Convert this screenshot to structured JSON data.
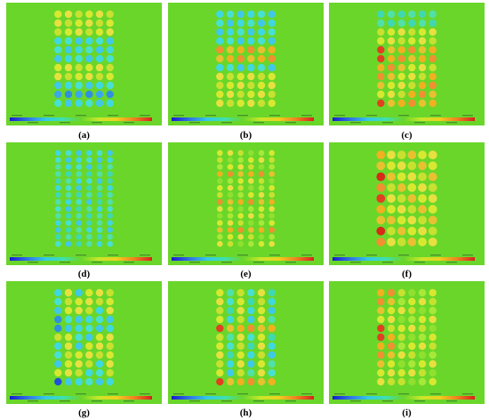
{
  "panels": [
    {
      "label": "(a)",
      "cols": 6,
      "rows": 11,
      "pattern": "a"
    },
    {
      "label": "(b)",
      "cols": 6,
      "rows": 11,
      "pattern": "b"
    },
    {
      "label": "(c)",
      "cols": 6,
      "rows": 11,
      "pattern": "c"
    },
    {
      "label": "(d)",
      "cols": 6,
      "rows": 14,
      "pattern": "d"
    },
    {
      "label": "(e)",
      "cols": 6,
      "rows": 14,
      "pattern": "e"
    },
    {
      "label": "(f)",
      "cols": 6,
      "rows": 9,
      "pattern": "f"
    },
    {
      "label": "(g)",
      "cols": 6,
      "rows": 11,
      "pattern": "g"
    },
    {
      "label": "(h)",
      "cols": 6,
      "rows": 11,
      "pattern": "h"
    },
    {
      "label": "(i)",
      "cols": 6,
      "rows": 11,
      "pattern": "i"
    }
  ],
  "colors": {
    "background": "#6ad62a",
    "colorbar": [
      "#1a1ad0",
      "#2f73e6",
      "#35c8e8",
      "#3de0b0",
      "#6ad62a",
      "#c8e62a",
      "#f0d020",
      "#f08020",
      "#d82020"
    ]
  }
}
